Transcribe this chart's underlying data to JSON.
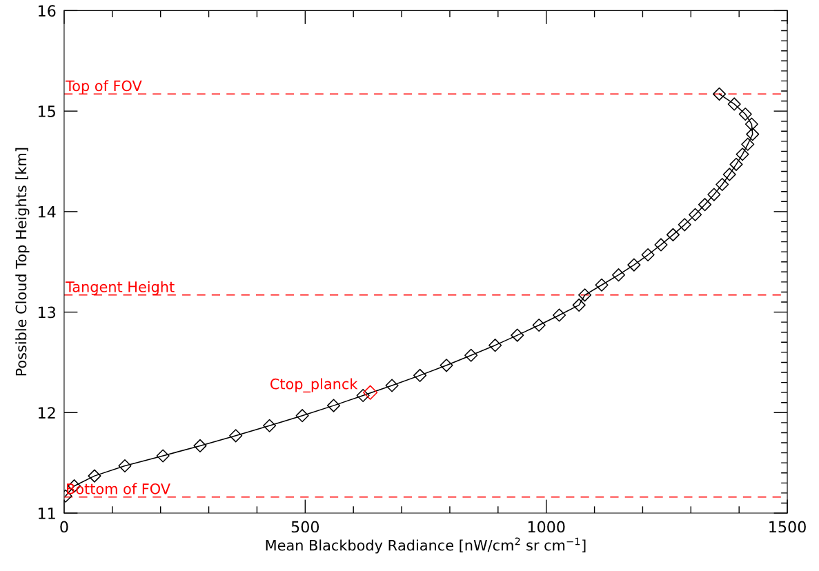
{
  "chart_data": {
    "type": "line",
    "xlabel": "Mean Blackbody Radiance [nW/cm$^{2}$ sr cm$^{−1}$]",
    "ylabel": "Possible Cloud Top Heights [km]",
    "xlim": [
      0,
      1500
    ],
    "xticks": [
      0,
      500,
      1000,
      1500
    ],
    "ylim": [
      11,
      16
    ],
    "yticks": [
      11,
      12,
      13,
      14,
      15,
      16
    ],
    "grid": false,
    "marker": "diamond",
    "line_style": "solid",
    "series": [
      {
        "color": "#000000",
        "x": [
          1359,
          1390,
          1413,
          1426,
          1428,
          1418,
          1407,
          1394,
          1380,
          1365,
          1348,
          1329,
          1309,
          1287,
          1263,
          1238,
          1211,
          1182,
          1150,
          1115,
          1080,
          1068,
          1027,
          985,
          940,
          894,
          844,
          793,
          738,
          680,
          620,
          559,
          494,
          426,
          356,
          282,
          205,
          126,
          63,
          21,
          3
        ],
        "values": [
          15.17,
          15.07,
          14.97,
          14.87,
          14.77,
          14.67,
          14.57,
          14.47,
          14.37,
          14.27,
          14.17,
          14.07,
          13.97,
          13.87,
          13.77,
          13.67,
          13.57,
          13.47,
          13.37,
          13.27,
          13.17,
          13.07,
          12.97,
          12.87,
          12.77,
          12.67,
          12.57,
          12.47,
          12.37,
          12.27,
          12.17,
          12.07,
          11.97,
          11.87,
          11.77,
          11.67,
          11.57,
          11.47,
          11.37,
          11.27,
          11.17
        ]
      },
      {
        "type": "scatter",
        "color": "#ff0000",
        "x": [
          635
        ],
        "values": [
          12.2
        ]
      }
    ],
    "annotations": [
      {
        "text": "Ctop_planck",
        "x": 635,
        "y": 12.2
      }
    ],
    "ref_lines": [
      {
        "axis": "y",
        "value": 15.17,
        "label": "Top of FOV",
        "color": "#ff0000",
        "line_style": "dashed"
      },
      {
        "axis": "y",
        "value": 13.17,
        "label": "Tangent Height",
        "color": "#ff0000",
        "line_style": "dashed"
      },
      {
        "axis": "y",
        "value": 11.16,
        "label": "Bottom of FOV",
        "color": "#ff0000",
        "line_style": "dashed"
      }
    ]
  }
}
